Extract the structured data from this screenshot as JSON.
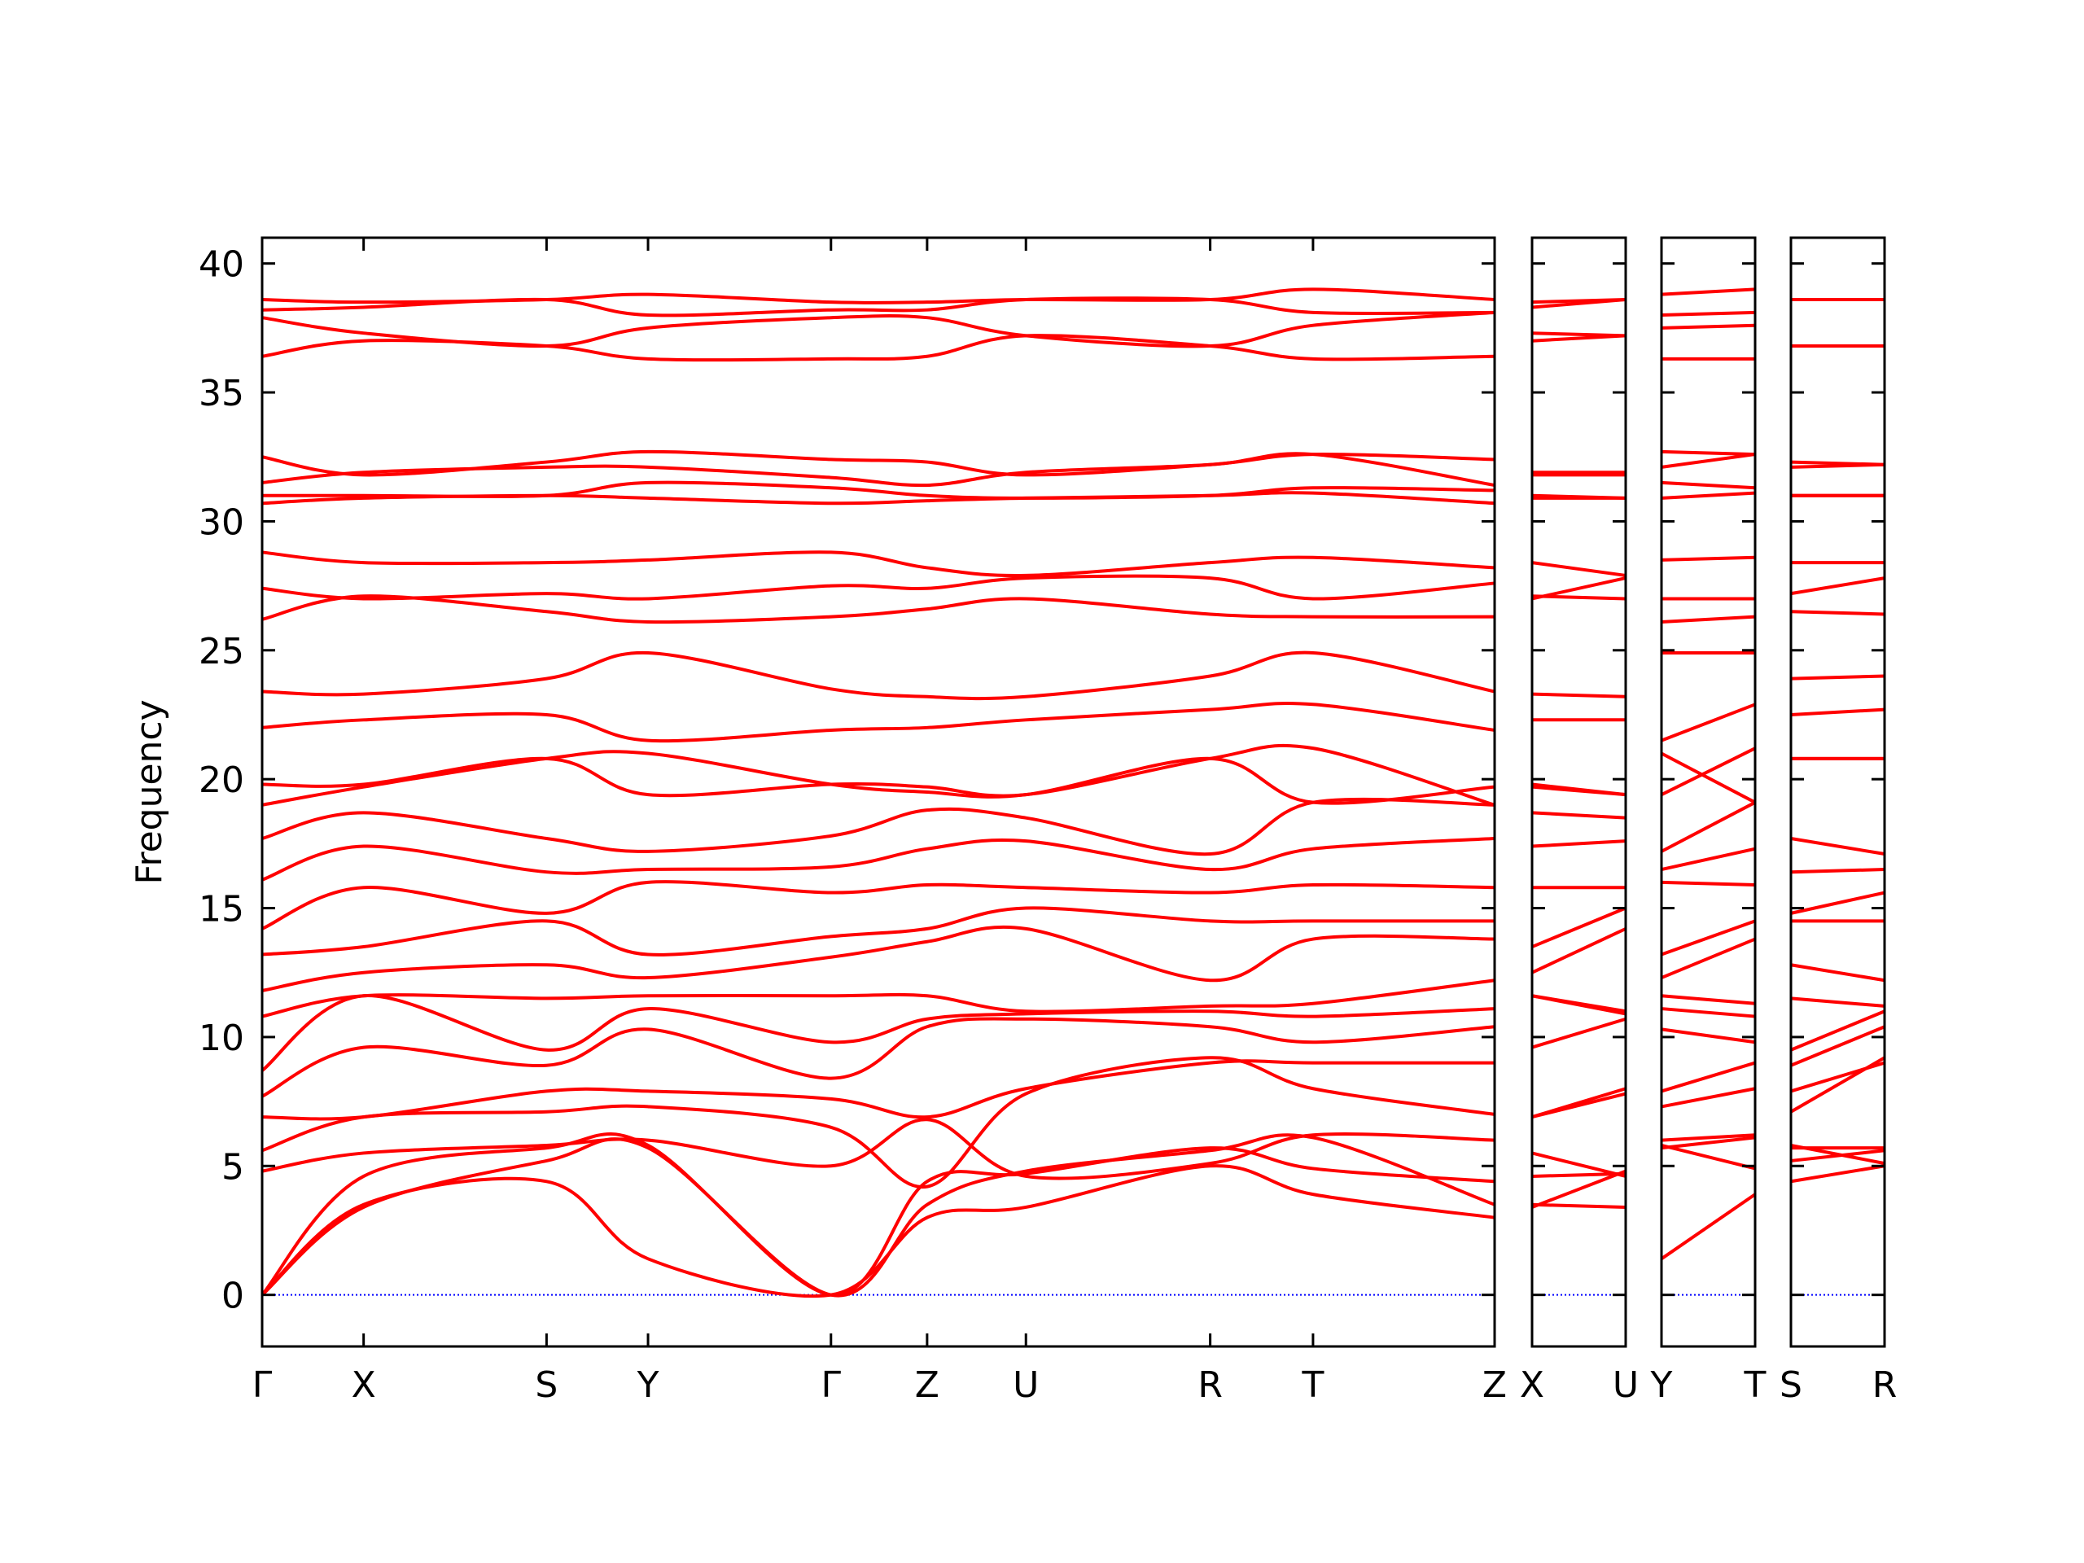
{
  "chart_data": [
    {
      "type": "line",
      "ylabel": "Frequency",
      "color": "#ff0000",
      "ytick_labels": true,
      "zero_line": {
        "value": 0,
        "color": "#0000ff"
      },
      "xlim": [
        0,
        9.23
      ],
      "ylim": [
        -2,
        41
      ],
      "yticks": [
        0,
        5,
        10,
        15,
        20,
        25,
        30,
        35,
        40
      ],
      "xticks": [
        {
          "value": 0,
          "label": "Γ"
        },
        {
          "value": 0.76,
          "label": "X"
        },
        {
          "value": 2.13,
          "label": "S"
        },
        {
          "value": 2.89,
          "label": "Y"
        },
        {
          "value": 4.26,
          "label": "Γ"
        },
        {
          "value": 4.98,
          "label": "Z"
        },
        {
          "value": 5.72,
          "label": "U"
        },
        {
          "value": 7.1,
          "label": "R"
        },
        {
          "value": 7.87,
          "label": "T"
        },
        {
          "value": 9.23,
          "label": "Z"
        }
      ],
      "x": [
        0,
        0.76,
        2.13,
        2.89,
        4.26,
        4.98,
        5.72,
        7.1,
        7.87,
        9.23
      ],
      "series": [
        {
          "values": [
            0,
            3.5,
            4.4,
            1.4,
            0,
            3,
            3.4,
            5.0,
            3.9,
            3.0
          ]
        },
        {
          "values": [
            0,
            3.4,
            5.2,
            5.7,
            0,
            3.5,
            4.8,
            5.6,
            6.1,
            3.5
          ]
        },
        {
          "values": [
            0,
            4.6,
            5.7,
            5.8,
            0,
            4.4,
            4.7,
            5.7,
            4.9,
            4.4
          ]
        },
        {
          "values": [
            4.8,
            5.5,
            5.8,
            6.0,
            5.0,
            6.8,
            4.6,
            5.1,
            6.2,
            6.0
          ]
        },
        {
          "values": [
            5.6,
            6.9,
            7.1,
            7.3,
            6.5,
            4.2,
            7.8,
            9.2,
            8.0,
            7.0
          ]
        },
        {
          "values": [
            6.9,
            6.9,
            7.9,
            7.9,
            7.6,
            6.9,
            8.0,
            9.0,
            9.0,
            9.0
          ]
        },
        {
          "values": [
            7.7,
            9.6,
            8.9,
            10.3,
            8.4,
            10.4,
            10.7,
            10.4,
            9.8,
            10.4
          ]
        },
        {
          "values": [
            8.7,
            11.6,
            9.5,
            11.1,
            9.8,
            10.7,
            10.9,
            11.0,
            10.8,
            11.1
          ]
        },
        {
          "values": [
            10.8,
            11.6,
            11.5,
            11.6,
            11.6,
            11.6,
            11.0,
            11.2,
            11.3,
            12.2
          ]
        },
        {
          "values": [
            11.8,
            12.5,
            12.8,
            12.3,
            13.1,
            13.7,
            14.2,
            12.2,
            13.8,
            13.8
          ]
        },
        {
          "values": [
            13.2,
            13.5,
            14.5,
            13.2,
            13.9,
            14.2,
            15.0,
            14.5,
            14.5,
            14.5
          ]
        },
        {
          "values": [
            14.2,
            15.8,
            14.8,
            16.0,
            15.6,
            15.9,
            15.8,
            15.6,
            15.9,
            15.8
          ]
        },
        {
          "values": [
            16.1,
            17.4,
            16.4,
            16.5,
            16.6,
            17.3,
            17.6,
            16.5,
            17.3,
            17.7
          ]
        },
        {
          "values": [
            17.7,
            18.7,
            17.7,
            17.2,
            17.8,
            18.8,
            18.5,
            17.1,
            19.1,
            19.0
          ]
        },
        {
          "values": [
            19.0,
            19.7,
            20.8,
            21.0,
            19.8,
            19.5,
            19.4,
            20.8,
            19.1,
            19.7
          ]
        },
        {
          "values": [
            19.8,
            19.8,
            20.8,
            19.4,
            19.8,
            19.7,
            19.4,
            20.8,
            21.2,
            19.0
          ]
        },
        {
          "values": [
            22.0,
            22.3,
            22.5,
            21.5,
            21.9,
            22.0,
            22.3,
            22.7,
            22.9,
            21.9
          ]
        },
        {
          "values": [
            23.4,
            23.3,
            23.9,
            24.9,
            23.5,
            23.2,
            23.2,
            24.0,
            24.9,
            23.4
          ]
        },
        {
          "values": [
            26.2,
            27.1,
            26.5,
            26.1,
            26.3,
            26.6,
            27.0,
            26.4,
            26.3,
            26.3
          ]
        },
        {
          "values": [
            27.4,
            27.0,
            27.2,
            27.0,
            27.5,
            27.4,
            27.8,
            27.8,
            27.0,
            27.6
          ]
        },
        {
          "values": [
            28.8,
            28.4,
            28.4,
            28.5,
            28.8,
            28.2,
            27.9,
            28.4,
            28.6,
            28.2
          ]
        },
        {
          "values": [
            30.7,
            30.9,
            31.0,
            30.9,
            30.7,
            30.8,
            30.9,
            31.0,
            31.1,
            30.7
          ]
        },
        {
          "values": [
            31.0,
            31.0,
            31.0,
            31.5,
            31.3,
            31.0,
            30.9,
            31.0,
            31.3,
            31.2
          ]
        },
        {
          "values": [
            31.5,
            31.9,
            32.1,
            32.1,
            31.7,
            31.4,
            31.9,
            32.2,
            32.6,
            31.4
          ]
        },
        {
          "values": [
            32.5,
            31.8,
            32.3,
            32.7,
            32.4,
            32.3,
            31.8,
            32.2,
            32.6,
            32.4
          ]
        },
        {
          "values": [
            36.4,
            37.0,
            36.8,
            36.3,
            36.3,
            36.4,
            37.2,
            36.8,
            36.3,
            36.4
          ]
        },
        {
          "values": [
            37.9,
            37.3,
            36.8,
            37.5,
            37.9,
            37.9,
            37.2,
            36.8,
            37.6,
            38.1
          ]
        },
        {
          "values": [
            38.2,
            38.3,
            38.6,
            38.0,
            38.2,
            38.2,
            38.6,
            38.6,
            38.1,
            38.1
          ]
        },
        {
          "values": [
            38.6,
            38.5,
            38.6,
            38.8,
            38.5,
            38.5,
            38.6,
            38.6,
            39.0,
            38.6
          ]
        }
      ]
    },
    {
      "type": "line",
      "color": "#ff0000",
      "ytick_labels": false,
      "zero_line": {
        "value": 0,
        "color": "#0000ff"
      },
      "xlim": [
        0,
        1
      ],
      "ylim": [
        -2,
        41
      ],
      "yticks": [
        0,
        5,
        10,
        15,
        20,
        25,
        30,
        35,
        40
      ],
      "xticks": [
        {
          "value": 0,
          "label": "X"
        },
        {
          "value": 1,
          "label": "U"
        }
      ],
      "x": [
        0,
        1
      ],
      "series": [
        {
          "values": [
            3.5,
            3.4
          ]
        },
        {
          "values": [
            3.4,
            4.8
          ]
        },
        {
          "values": [
            4.6,
            4.7
          ]
        },
        {
          "values": [
            5.5,
            4.6
          ]
        },
        {
          "values": [
            6.9,
            7.8
          ]
        },
        {
          "values": [
            6.9,
            8.0
          ]
        },
        {
          "values": [
            9.6,
            10.7
          ]
        },
        {
          "values": [
            11.6,
            10.9
          ]
        },
        {
          "values": [
            11.6,
            11.0
          ]
        },
        {
          "values": [
            12.5,
            14.2
          ]
        },
        {
          "values": [
            13.5,
            15.0
          ]
        },
        {
          "values": [
            15.8,
            15.8
          ]
        },
        {
          "values": [
            17.4,
            17.6
          ]
        },
        {
          "values": [
            18.7,
            18.5
          ]
        },
        {
          "values": [
            19.7,
            19.4
          ]
        },
        {
          "values": [
            19.8,
            19.4
          ]
        },
        {
          "values": [
            22.3,
            22.3
          ]
        },
        {
          "values": [
            23.3,
            23.2
          ]
        },
        {
          "values": [
            27.1,
            27.0
          ]
        },
        {
          "values": [
            27.0,
            27.8
          ]
        },
        {
          "values": [
            28.4,
            27.9
          ]
        },
        {
          "values": [
            30.9,
            30.9
          ]
        },
        {
          "values": [
            31.0,
            30.9
          ]
        },
        {
          "values": [
            31.9,
            31.9
          ]
        },
        {
          "values": [
            31.8,
            31.8
          ]
        },
        {
          "values": [
            37.0,
            37.2
          ]
        },
        {
          "values": [
            37.3,
            37.2
          ]
        },
        {
          "values": [
            38.3,
            38.6
          ]
        },
        {
          "values": [
            38.5,
            38.6
          ]
        }
      ]
    },
    {
      "type": "line",
      "color": "#ff0000",
      "ytick_labels": false,
      "zero_line": {
        "value": 0,
        "color": "#0000ff"
      },
      "xlim": [
        0,
        1
      ],
      "ylim": [
        -2,
        41
      ],
      "yticks": [
        0,
        5,
        10,
        15,
        20,
        25,
        30,
        35,
        40
      ],
      "xticks": [
        {
          "value": 0,
          "label": "Y"
        },
        {
          "value": 1,
          "label": "T"
        }
      ],
      "x": [
        0,
        1
      ],
      "series": [
        {
          "values": [
            1.4,
            3.9
          ]
        },
        {
          "values": [
            5.7,
            6.1
          ]
        },
        {
          "values": [
            5.8,
            4.9
          ]
        },
        {
          "values": [
            6.0,
            6.2
          ]
        },
        {
          "values": [
            7.3,
            8.0
          ]
        },
        {
          "values": [
            7.9,
            9.0
          ]
        },
        {
          "values": [
            10.3,
            9.8
          ]
        },
        {
          "values": [
            11.1,
            10.8
          ]
        },
        {
          "values": [
            11.6,
            11.3
          ]
        },
        {
          "values": [
            12.3,
            13.8
          ]
        },
        {
          "values": [
            13.2,
            14.5
          ]
        },
        {
          "values": [
            16.0,
            15.9
          ]
        },
        {
          "values": [
            16.5,
            17.3
          ]
        },
        {
          "values": [
            17.2,
            19.1
          ]
        },
        {
          "values": [
            21.0,
            19.1
          ]
        },
        {
          "values": [
            19.4,
            21.2
          ]
        },
        {
          "values": [
            21.5,
            22.9
          ]
        },
        {
          "values": [
            24.9,
            24.9
          ]
        },
        {
          "values": [
            26.1,
            26.3
          ]
        },
        {
          "values": [
            27.0,
            27.0
          ]
        },
        {
          "values": [
            28.5,
            28.6
          ]
        },
        {
          "values": [
            30.9,
            31.1
          ]
        },
        {
          "values": [
            31.5,
            31.3
          ]
        },
        {
          "values": [
            32.1,
            32.6
          ]
        },
        {
          "values": [
            32.7,
            32.6
          ]
        },
        {
          "values": [
            36.3,
            36.3
          ]
        },
        {
          "values": [
            37.5,
            37.6
          ]
        },
        {
          "values": [
            38.0,
            38.1
          ]
        },
        {
          "values": [
            38.8,
            39.0
          ]
        }
      ]
    },
    {
      "type": "line",
      "color": "#ff0000",
      "ytick_labels": false,
      "zero_line": {
        "value": 0,
        "color": "#0000ff"
      },
      "xlim": [
        0,
        1
      ],
      "ylim": [
        -2,
        41
      ],
      "yticks": [
        0,
        5,
        10,
        15,
        20,
        25,
        30,
        35,
        40
      ],
      "xticks": [
        {
          "value": 0,
          "label": "S"
        },
        {
          "value": 1,
          "label": "R"
        }
      ],
      "x": [
        0,
        1
      ],
      "series": [
        {
          "values": [
            4.4,
            5.0
          ]
        },
        {
          "values": [
            5.2,
            5.6
          ]
        },
        {
          "values": [
            5.7,
            5.7
          ]
        },
        {
          "values": [
            5.8,
            5.1
          ]
        },
        {
          "values": [
            7.1,
            9.2
          ]
        },
        {
          "values": [
            7.9,
            9.0
          ]
        },
        {
          "values": [
            8.9,
            10.4
          ]
        },
        {
          "values": [
            9.5,
            11.0
          ]
        },
        {
          "values": [
            11.5,
            11.2
          ]
        },
        {
          "values": [
            12.8,
            12.2
          ]
        },
        {
          "values": [
            14.5,
            14.5
          ]
        },
        {
          "values": [
            14.8,
            15.6
          ]
        },
        {
          "values": [
            16.4,
            16.5
          ]
        },
        {
          "values": [
            17.7,
            17.1
          ]
        },
        {
          "values": [
            20.8,
            20.8
          ]
        },
        {
          "values": [
            20.8,
            20.8
          ]
        },
        {
          "values": [
            22.5,
            22.7
          ]
        },
        {
          "values": [
            23.9,
            24.0
          ]
        },
        {
          "values": [
            26.5,
            26.4
          ]
        },
        {
          "values": [
            27.2,
            27.8
          ]
        },
        {
          "values": [
            28.4,
            28.4
          ]
        },
        {
          "values": [
            31.0,
            31.0
          ]
        },
        {
          "values": [
            31.0,
            31.0
          ]
        },
        {
          "values": [
            32.1,
            32.2
          ]
        },
        {
          "values": [
            32.3,
            32.2
          ]
        },
        {
          "values": [
            36.8,
            36.8
          ]
        },
        {
          "values": [
            36.8,
            36.8
          ]
        },
        {
          "values": [
            38.6,
            38.6
          ]
        },
        {
          "values": [
            38.6,
            38.6
          ]
        }
      ]
    }
  ]
}
